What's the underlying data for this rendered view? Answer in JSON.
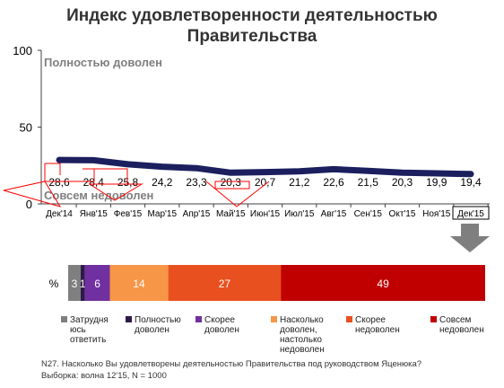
{
  "chart_data": [
    {
      "type": "line",
      "title_lines": [
        "Индекс удовлетворенности деятельностью",
        "Правительства"
      ],
      "band_labels": {
        "top": "Полностью доволен",
        "bottom": "Совсем недоволен"
      },
      "ylim": [
        0,
        100
      ],
      "yticks": [
        0,
        50,
        100
      ],
      "categories": [
        "Дек'14",
        "Янв'15",
        "Фев'15",
        "Мар'15",
        "Апр'15",
        "Май'15",
        "Июн'15",
        "Июл'15",
        "Авг'15",
        "Сен'15",
        "Окт'15",
        "Ноя'15",
        "Дек'15"
      ],
      "series": [
        {
          "values": [
            28.6,
            28.4,
            25.8,
            24.2,
            23.3,
            20.3,
            20.7,
            21.2,
            22.6,
            21.5,
            20.3,
            19.9,
            19.4
          ],
          "color": "#1b1f5e"
        }
      ],
      "value_labels": [
        "28,6",
        "28,4",
        "25,8",
        "24,2",
        "23,3",
        "20,3",
        "20,7",
        "21,2",
        "22,6",
        "21,5",
        "20,3",
        "19,9",
        "19,4"
      ],
      "highlighted_category": "Дек'15",
      "grid": false
    },
    {
      "type": "bar",
      "orientation": "horizontal",
      "stacked": true,
      "row_label": "%",
      "segments": [
        {
          "name": "Затрудняюсь ответить",
          "value": 3,
          "label": "3",
          "color": "#7f7f7f"
        },
        {
          "name": "Полностью доволен",
          "value": 1,
          "label": "1",
          "color": "#2e1a47"
        },
        {
          "name": "Скорее доволен",
          "value": 6,
          "label": "6",
          "color": "#7030a0"
        },
        {
          "name": "Насколько доволен, настолько недоволен",
          "value": 14,
          "label": "14",
          "color": "#f79646"
        },
        {
          "name": "Скорее недоволен",
          "value": 27,
          "label": "27",
          "color": "#e8501f"
        },
        {
          "name": "Совсем недоволен",
          "value": 49,
          "label": "49",
          "color": "#c00000"
        }
      ],
      "legend": [
        {
          "lines": [
            "Затрудня",
            "юсь",
            "ответить"
          ],
          "color": "#7f7f7f"
        },
        {
          "lines": [
            "Полностью",
            "доволен"
          ],
          "color": "#2e1a47"
        },
        {
          "lines": [
            "Скорее",
            "доволен"
          ],
          "color": "#7030a0"
        },
        {
          "lines": [
            "Насколько",
            "доволен,",
            "настолько",
            "недоволен"
          ],
          "color": "#f79646"
        },
        {
          "lines": [
            "Скорее",
            "недоволен"
          ],
          "color": "#e8501f"
        },
        {
          "lines": [
            "Совсем",
            "недоволен"
          ],
          "color": "#c00000"
        }
      ]
    }
  ],
  "footnote": {
    "question": "N27. Насколько Вы удовлетворены деятельностью Правительства под руководством Яценюка?",
    "sample": "Выборка: волна 12'15, N = 1000"
  }
}
